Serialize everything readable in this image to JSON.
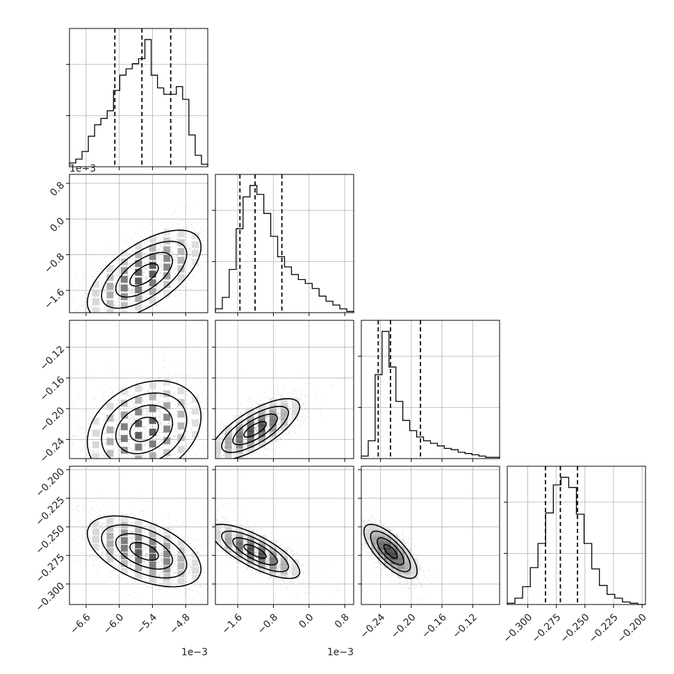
{
  "chart_data": {
    "type": "corner",
    "colors": {
      "line": "#000000",
      "grid": "#b0b0b0",
      "scatter": "#808080",
      "background": "#ffffff"
    },
    "grid": true,
    "parameters": [
      {
        "range": [
          -0.0069,
          -0.0044
        ],
        "ticks": [
          -0.0066,
          -0.006,
          -0.0054,
          -0.0048
        ],
        "tick_labels": [
          "−6.6",
          "−6.0",
          "−5.4",
          "−4.8"
        ],
        "offset_text": "1e−3",
        "quantiles": [
          -0.00608,
          -0.00559,
          -0.00507
        ],
        "hist_max": 1.0,
        "hist": [
          0.03,
          0.06,
          0.12,
          0.24,
          0.33,
          0.38,
          0.44,
          0.6,
          0.72,
          0.77,
          0.81,
          0.85,
          1.0,
          0.72,
          0.62,
          0.57,
          0.57,
          0.63,
          0.53,
          0.25,
          0.09,
          0.02
        ]
      },
      {
        "range": [
          -0.0021,
          0.001
        ],
        "ticks": [
          -0.0016,
          -0.0008,
          0.0,
          0.0008
        ],
        "tick_labels": [
          "−1.6",
          "−0.8",
          "0.0",
          "0.8"
        ],
        "offset_text": "1e−3",
        "quantiles": [
          -0.00155,
          -0.00121,
          -0.00061
        ],
        "hist_max": 1.0,
        "hist": [
          0.03,
          0.12,
          0.34,
          0.66,
          0.91,
          1.0,
          0.93,
          0.78,
          0.6,
          0.44,
          0.36,
          0.3,
          0.26,
          0.23,
          0.19,
          0.13,
          0.09,
          0.06,
          0.03,
          0.01
        ]
      },
      {
        "range": [
          -0.265,
          -0.085
        ],
        "ticks": [
          -0.24,
          -0.2,
          -0.16,
          -0.12
        ],
        "tick_labels": [
          "−0.24",
          "−0.20",
          "−0.16",
          "−0.12"
        ],
        "quantiles": [
          -0.243,
          -0.227,
          -0.188
        ],
        "hist_max": 1.0,
        "hist": [
          0.02,
          0.14,
          0.66,
          1.0,
          0.72,
          0.45,
          0.3,
          0.22,
          0.17,
          0.14,
          0.12,
          0.1,
          0.08,
          0.07,
          0.05,
          0.04,
          0.03,
          0.02,
          0.01,
          0.01
        ]
      },
      {
        "range": [
          -0.318,
          -0.197
        ],
        "ticks": [
          -0.3,
          -0.275,
          -0.25,
          -0.225,
          -0.2
        ],
        "tick_labels": [
          "−0.300",
          "−0.275",
          "−0.250",
          "−0.225",
          "−0.200"
        ],
        "quantiles": [
          -0.2845,
          -0.2715,
          -0.2565
        ],
        "hist_max": 1.0,
        "hist": [
          0.01,
          0.05,
          0.14,
          0.29,
          0.48,
          0.72,
          0.94,
          1.0,
          0.92,
          0.71,
          0.48,
          0.28,
          0.15,
          0.08,
          0.05,
          0.02,
          0.01,
          0.0
        ]
      }
    ],
    "pairs": [
      {
        "row": 1,
        "col": 0,
        "mean": [
          -0.00555,
          -0.00125
        ],
        "cov": [
          [
            2.64e-07,
            1.6e-07
          ],
          [
            1.6e-07,
            2.5e-07
          ]
        ],
        "y_ticks_shown": true
      },
      {
        "row": 2,
        "col": 0,
        "mean": [
          -0.00555,
          -0.227
        ],
        "cov": [
          [
            2.64e-07,
            4.2e-06
          ],
          [
            4.2e-06,
            0.001
          ]
        ]
      },
      {
        "row": 2,
        "col": 1,
        "mean": [
          -0.00121,
          -0.227
        ],
        "cov": [
          [
            2.5e-07,
            7.3e-06
          ],
          [
            7.3e-06,
            0.0004
          ]
        ]
      },
      {
        "row": 3,
        "col": 0,
        "mean": [
          -0.00555,
          -0.2715
        ],
        "cov": [
          [
            2.64e-07,
            -4e-06
          ],
          [
            -4e-06,
            0.00024
          ]
        ]
      },
      {
        "row": 3,
        "col": 1,
        "mean": [
          -0.00121,
          -0.2715
        ],
        "cov": [
          [
            2.5e-07,
            -4.5e-06
          ],
          [
            -4.5e-06,
            0.00014
          ]
        ]
      },
      {
        "row": 3,
        "col": 2,
        "mean": [
          -0.227,
          -0.2715
        ],
        "cov": [
          [
            0.0003,
            -0.00015
          ],
          [
            -0.00015,
            0.00014
          ]
        ]
      }
    ]
  }
}
